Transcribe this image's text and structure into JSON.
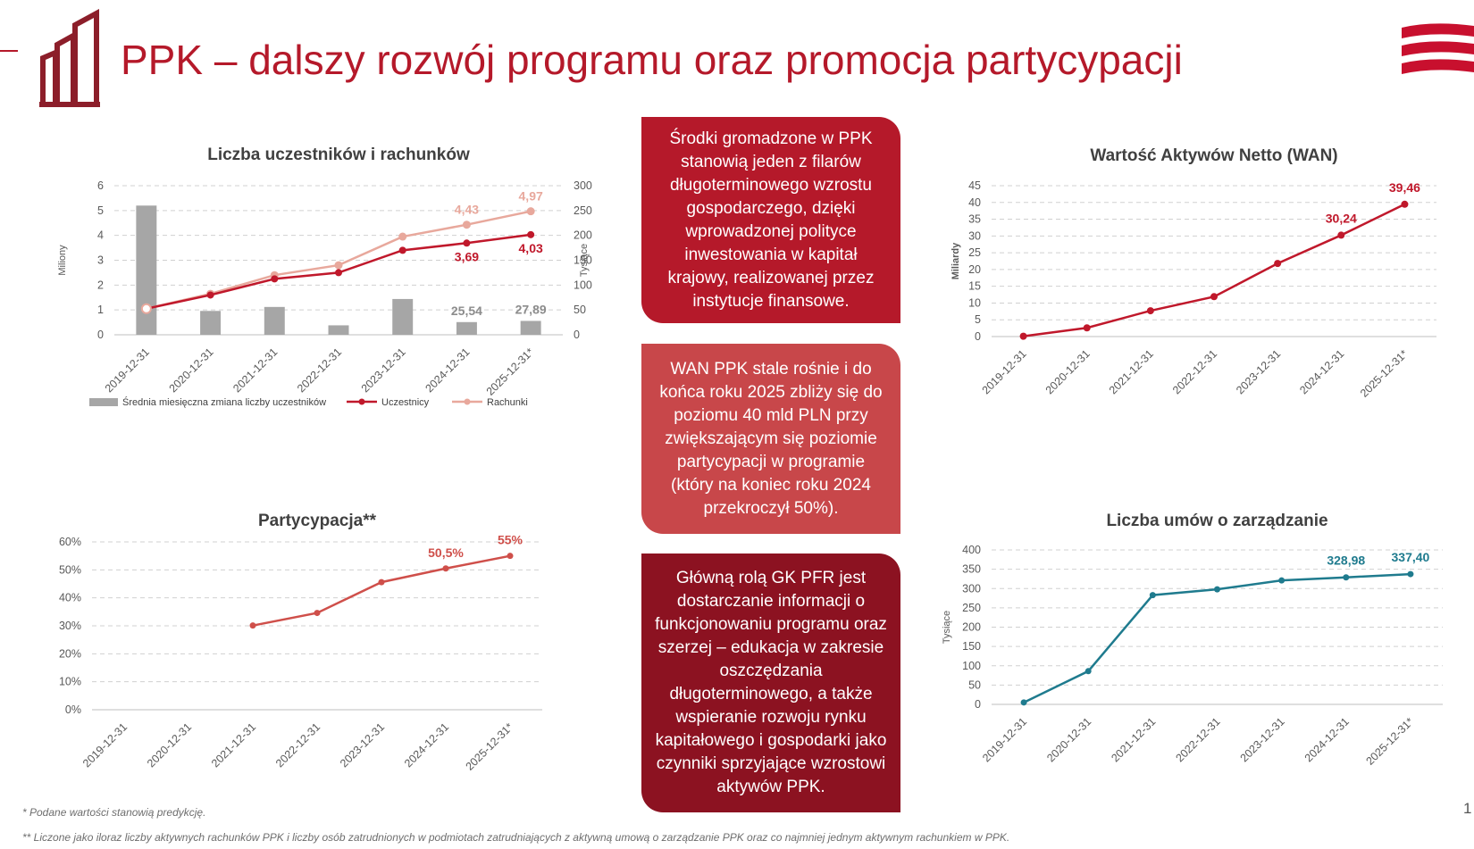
{
  "title": "PPK – dalszy rozwój programu oraz promocja partycypacji",
  "textboxes": [
    "Środki gromadzone w PPK stanowią jeden z filarów długoterminowego wzrostu gospodarczego, dzięki wprowadzonej polityce inwestowania w kapitał krajowy, realizowanej przez instytucje finansowe.",
    "WAN PPK stale rośnie i do końca roku 2025 zbliży się do poziomu 40 mld PLN przy zwiększającym się poziomie partycypacji w programie (który na koniec roku 2024 przekroczył 50%).",
    "Główną rolą GK PFR jest dostarczanie informacji o funkcjonowaniu programu oraz szerzej – edukacja w zakresie oszczędzania długoterminowego, a także wspieranie rozwoju rynku kapitałowego i gospodarki jako czynniki sprzyjające wzrostowi aktywów PPK."
  ],
  "footnotes": [
    "* Podane wartości stanowią predykcję.",
    "** Liczone jako iloraz liczby aktywnych rachunków PPK i liczby osób zatrudnionych w podmiotach zatrudniających z aktywną umową o zarządzanie PPK oraz co najmniej jednym aktywnym rachunkiem w PPK."
  ],
  "page_number": "1",
  "colors": {
    "brand_red": "#b5192a",
    "box_mid": "#c8474a",
    "box_dark": "#8c1221",
    "line_dark": "#c0182b",
    "line_light": "#e8a89c",
    "bar_gray": "#a6a6a6",
    "teal": "#1f7b8e",
    "partycypacja_line": "#cf4f4a"
  },
  "chart_data": [
    {
      "id": "participants",
      "type": "bar",
      "title": "Liczba uczestników i rachunków",
      "categories": [
        "2019-12-31",
        "2020-12-31",
        "2021-12-31",
        "2022-12-31",
        "2023-12-31",
        "2024-12-31",
        "2025-12-31*"
      ],
      "ylabel_left": "Miliony",
      "ylabel_right": "Tysiące",
      "ylim_left": [
        0,
        6
      ],
      "yticks_left": [
        "0",
        "1",
        "2",
        "3",
        "4",
        "5",
        "6"
      ],
      "ylim_right": [
        0,
        300
      ],
      "yticks_right": [
        "0",
        "50",
        "100",
        "150",
        "200",
        "250",
        "300"
      ],
      "grid": true,
      "legend_position": "bottom",
      "series": [
        {
          "name": "Średnia miesięczna zmiana liczby uczestników",
          "kind": "bar",
          "axis": "right",
          "values": [
            260,
            48,
            56,
            19,
            72,
            25.54,
            27.89
          ],
          "labels": [
            "",
            "",
            "",
            "",
            "",
            "25,54",
            "27,89"
          ]
        },
        {
          "name": "Uczestnicy",
          "kind": "line",
          "axis": "left",
          "values": [
            1.05,
            1.6,
            2.25,
            2.5,
            3.4,
            3.69,
            4.03
          ],
          "labels": [
            "",
            "",
            "",
            "",
            "",
            "3,69",
            "4,03"
          ]
        },
        {
          "name": "Rachunki",
          "kind": "line",
          "axis": "left",
          "values": [
            1.05,
            1.65,
            2.4,
            2.8,
            3.95,
            4.43,
            4.97
          ],
          "labels": [
            "",
            "",
            "",
            "",
            "",
            "4,43",
            "4,97"
          ]
        }
      ]
    },
    {
      "id": "wan",
      "type": "line",
      "title": "Wartość Aktywów Netto (WAN)",
      "categories": [
        "2019-12-31",
        "2020-12-31",
        "2021-12-31",
        "2022-12-31",
        "2023-12-31",
        "2024-12-31",
        "2025-12-31*"
      ],
      "ylabel": "Miliardy",
      "ylim": [
        0,
        45
      ],
      "yticks": [
        "0",
        "5",
        "10",
        "15",
        "20",
        "25",
        "30",
        "35",
        "40",
        "45"
      ],
      "grid": true,
      "series": [
        {
          "values": [
            0.1,
            2.6,
            7.7,
            11.9,
            21.8,
            30.24,
            39.46
          ],
          "labels": [
            "",
            "",
            "",
            "",
            "",
            "30,24",
            "39,46"
          ]
        }
      ]
    },
    {
      "id": "participation",
      "type": "line",
      "title": "Partycypacja**",
      "categories": [
        "2019-12-31",
        "2020-12-31",
        "2021-12-31",
        "2022-12-31",
        "2023-12-31",
        "2024-12-31",
        "2025-12-31*"
      ],
      "ylim": [
        0,
        60
      ],
      "yticks": [
        "0%",
        "10%",
        "20%",
        "30%",
        "40%",
        "50%",
        "60%"
      ],
      "grid": true,
      "series": [
        {
          "values": [
            null,
            null,
            30.1,
            34.6,
            45.6,
            50.5,
            55
          ],
          "labels": [
            "",
            "",
            "",
            "",
            "",
            "50,5%",
            "55%"
          ]
        }
      ]
    },
    {
      "id": "contracts",
      "type": "line",
      "title": "Liczba umów o zarządzanie",
      "categories": [
        "2019-12-31",
        "2020-12-31",
        "2021-12-31",
        "2022-12-31",
        "2023-12-31",
        "2024-12-31",
        "2025-12-31*"
      ],
      "ylabel": "Tysiące",
      "ylim": [
        0,
        400
      ],
      "yticks": [
        "0",
        "50",
        "100",
        "150",
        "200",
        "250",
        "300",
        "350",
        "400"
      ],
      "grid": true,
      "series": [
        {
          "values": [
            5,
            86,
            283,
            298,
            321,
            328.98,
            337.4
          ],
          "labels": [
            "",
            "",
            "",
            "",
            "",
            "328,98",
            "337,40"
          ]
        }
      ]
    }
  ]
}
